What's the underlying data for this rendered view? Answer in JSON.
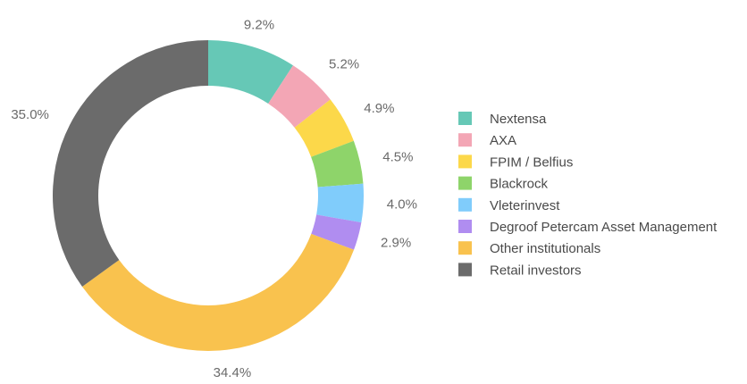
{
  "chart_data": {
    "type": "pie",
    "subtype": "donut",
    "title": "",
    "legend_position": "right",
    "slices": [
      {
        "label": "Nextensa",
        "value": 9.2,
        "value_label": "9.2%",
        "color": "#66c8b6"
      },
      {
        "label": "AXA",
        "value": 5.2,
        "value_label": "5.2%",
        "color": "#f3a6b5"
      },
      {
        "label": "FPIM / Belfius",
        "value": 4.9,
        "value_label": "4.9%",
        "color": "#fcd84a"
      },
      {
        "label": "Blackrock",
        "value": 4.5,
        "value_label": "4.5%",
        "color": "#8ed46a"
      },
      {
        "label": "Vleterinvest",
        "value": 4.0,
        "value_label": "4.0%",
        "color": "#80ccfb"
      },
      {
        "label": "Degroof Petercam Asset Management",
        "value": 2.9,
        "value_label": "2.9%",
        "color": "#b08df0"
      },
      {
        "label": "Other institutionals",
        "value": 34.4,
        "value_label": "34.4%",
        "color": "#f9c24e"
      },
      {
        "label": "Retail investors",
        "value": 35.0,
        "value_label": "35.0%",
        "color": "#6b6b6b"
      }
    ]
  }
}
